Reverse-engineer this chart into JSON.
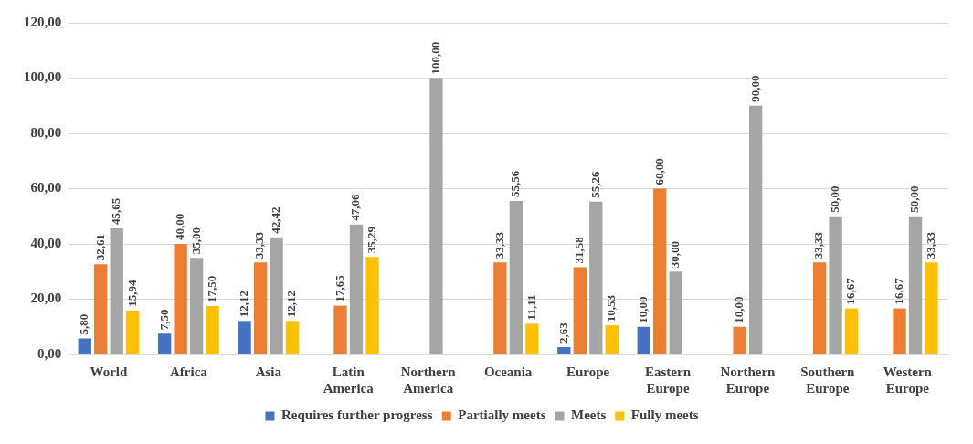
{
  "chart_data": {
    "type": "bar",
    "categories": [
      "World",
      "Africa",
      "Asia",
      "Latin America",
      "Northern America",
      "Oceania",
      "Europe",
      "Eastern Europe",
      "Northern Europe",
      "Southern Europe",
      "Western Europe"
    ],
    "series": [
      {
        "name": "Requires further progress",
        "color": "#4472c4",
        "values": [
          5.8,
          7.5,
          12.12,
          null,
          null,
          null,
          2.63,
          10.0,
          null,
          null,
          null
        ],
        "value_labels": [
          "5,80",
          "7,50",
          "12,12",
          null,
          null,
          null,
          "2,63",
          "10,00",
          null,
          null,
          null
        ]
      },
      {
        "name": "Partially meets",
        "color": "#ed7d31",
        "values": [
          32.61,
          40.0,
          33.33,
          17.65,
          null,
          33.33,
          31.58,
          60.0,
          10.0,
          33.33,
          16.67
        ],
        "value_labels": [
          "32,61",
          "40,00",
          "33,33",
          "17,65",
          null,
          "33,33",
          "31,58",
          "60,00",
          "10,00",
          "33,33",
          "16,67"
        ]
      },
      {
        "name": "Meets",
        "color": "#a5a5a5",
        "values": [
          45.65,
          35.0,
          42.42,
          47.06,
          100.0,
          55.56,
          55.26,
          30.0,
          90.0,
          50.0,
          50.0
        ],
        "value_labels": [
          "45,65",
          "35,00",
          "42,42",
          "47,06",
          "100,00",
          "55,56",
          "55,26",
          "30,00",
          "90,00",
          "50,00",
          "50,00"
        ]
      },
      {
        "name": "Fully meets",
        "color": "#ffc000",
        "values": [
          15.94,
          17.5,
          12.12,
          35.29,
          null,
          11.11,
          10.53,
          null,
          null,
          16.67,
          33.33
        ],
        "value_labels": [
          "15,94",
          "17,50",
          "12,12",
          "35,29",
          null,
          "11,11",
          "10,53",
          null,
          null,
          "16,67",
          "33,33"
        ]
      }
    ],
    "ylim": [
      0,
      120
    ],
    "yticks": [
      {
        "value": 0,
        "label": "0,00"
      },
      {
        "value": 20,
        "label": "20,00"
      },
      {
        "value": 40,
        "label": "40,00"
      },
      {
        "value": 60,
        "label": "60,00"
      },
      {
        "value": 80,
        "label": "80,00"
      },
      {
        "value": 100,
        "label": "100,00"
      },
      {
        "value": 120,
        "label": "120,00"
      }
    ],
    "grid": "y",
    "legend": "bottom"
  }
}
